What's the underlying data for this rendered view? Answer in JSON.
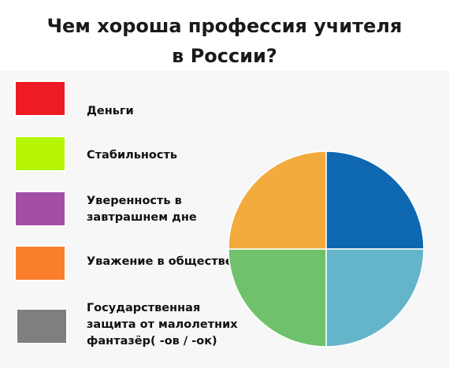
{
  "title": {
    "line1": "Чем хороша профессия учителя",
    "line2": "в России?"
  },
  "legend": [
    {
      "label": "Деньги",
      "color": "#ed1c24"
    },
    {
      "label": "Стабильность",
      "color": "#b5f505"
    },
    {
      "label": "Уверенность в\nзавтрашнем дне",
      "color": "#a44fa6"
    },
    {
      "label": "Уважение в обществе",
      "color": "#fa7f2a"
    },
    {
      "label": "Государственная\nзащита от малолетних\nфантазёр( -ов / -ок)",
      "color": "#7f7f7f"
    }
  ],
  "chart_data": {
    "type": "pie",
    "slices": [
      {
        "value": 25,
        "color": "#0d68b1"
      },
      {
        "value": 25,
        "color": "#65b5ca"
      },
      {
        "value": 25,
        "color": "#70c16b"
      },
      {
        "value": 25,
        "color": "#f2ab3c"
      }
    ]
  }
}
